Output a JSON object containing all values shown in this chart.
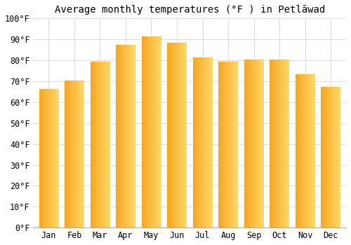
{
  "title": "Average monthly temperatures (°F ) in Petlāwad",
  "months": [
    "Jan",
    "Feb",
    "Mar",
    "Apr",
    "May",
    "Jun",
    "Jul",
    "Aug",
    "Sep",
    "Oct",
    "Nov",
    "Dec"
  ],
  "temperatures": [
    66,
    70,
    79,
    87,
    91,
    88,
    81,
    79,
    80,
    80,
    73,
    67
  ],
  "bar_color_dark": "#F5A623",
  "bar_color_light": "#FFD966",
  "ylim": [
    0,
    100
  ],
  "yticks": [
    0,
    10,
    20,
    30,
    40,
    50,
    60,
    70,
    80,
    90,
    100
  ],
  "ytick_labels": [
    "0°F",
    "10°F",
    "20°F",
    "30°F",
    "40°F",
    "50°F",
    "60°F",
    "70°F",
    "80°F",
    "90°F",
    "100°F"
  ],
  "background_color": "#ffffff",
  "grid_color": "#dddddd",
  "title_fontsize": 10,
  "tick_fontsize": 8.5,
  "bar_width": 0.75
}
